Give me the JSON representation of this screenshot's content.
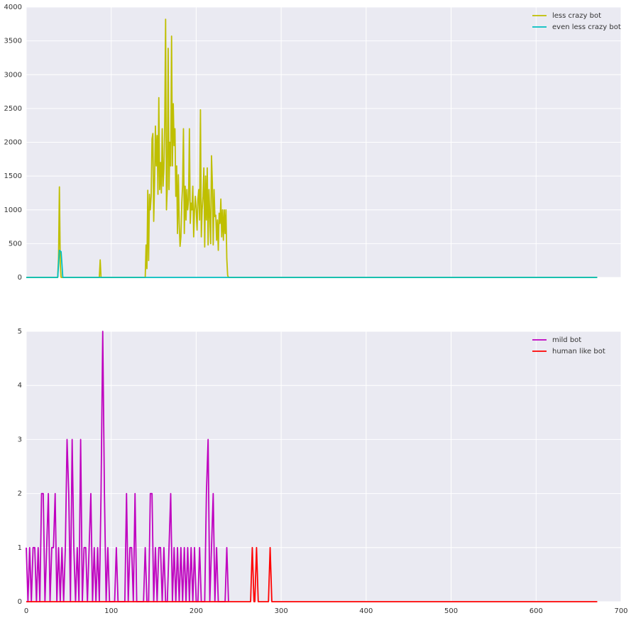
{
  "chart_data": [
    {
      "type": "line",
      "xlim": [
        0,
        700
      ],
      "ylim": [
        0,
        4000
      ],
      "xticks": [
        0,
        100,
        200,
        300,
        400,
        500,
        600,
        700
      ],
      "show_xtick_labels": false,
      "yticks": [
        0,
        500,
        1000,
        1500,
        2000,
        2500,
        3000,
        3500,
        4000
      ],
      "grid": true,
      "legend": "upper right",
      "series": [
        {
          "name": "less crazy bot",
          "color": "#bfbf00",
          "x": [
            0,
            37,
            38,
            39,
            40,
            41,
            86,
            87,
            88,
            140,
            141,
            142,
            143,
            144,
            145,
            146,
            147,
            148,
            149,
            150,
            151,
            152,
            153,
            154,
            155,
            156,
            157,
            158,
            159,
            160,
            161,
            162,
            163,
            164,
            165,
            166,
            167,
            168,
            169,
            170,
            171,
            172,
            173,
            174,
            175,
            176,
            177,
            178,
            179,
            180,
            181,
            182,
            183,
            184,
            185,
            186,
            187,
            188,
            189,
            190,
            191,
            192,
            193,
            194,
            195,
            196,
            197,
            198,
            199,
            200,
            201,
            202,
            203,
            204,
            205,
            206,
            207,
            208,
            209,
            210,
            211,
            212,
            213,
            214,
            215,
            216,
            217,
            218,
            219,
            220,
            221,
            222,
            223,
            224,
            225,
            226,
            227,
            228,
            229,
            230,
            231,
            232,
            233,
            234,
            235,
            236,
            237,
            238,
            672
          ],
          "values": [
            0,
            0,
            300,
            1340,
            200,
            0,
            0,
            260,
            0,
            0,
            480,
            130,
            1290,
            250,
            1230,
            1000,
            1200,
            2050,
            2130,
            830,
            1400,
            2240,
            1650,
            2100,
            1230,
            2660,
            1300,
            1700,
            1250,
            2200,
            1350,
            1600,
            2300,
            3820,
            1000,
            1350,
            3390,
            1300,
            2000,
            1650,
            3570,
            1650,
            2570,
            1950,
            2200,
            1200,
            1650,
            650,
            1520,
            800,
            460,
            600,
            1100,
            1350,
            2200,
            650,
            1350,
            850,
            1300,
            1000,
            1150,
            2200,
            800,
            1100,
            1000,
            1350,
            600,
            1000,
            1200,
            1000,
            700,
            1150,
            1300,
            850,
            2480,
            600,
            1000,
            1200,
            1620,
            450,
            1500,
            850,
            1620,
            480,
            1300,
            900,
            500,
            1800,
            1400,
            480,
            1300,
            900,
            920,
            550,
            850,
            400,
            950,
            800,
            1160,
            600,
            1000,
            550,
            1000,
            650,
            1000,
            280,
            30,
            0,
            0
          ]
        },
        {
          "name": "even less crazy bot",
          "color": "#00bfbf",
          "x": [
            0,
            37,
            39,
            41,
            43,
            672
          ],
          "values": [
            0,
            0,
            400,
            380,
            0,
            0
          ]
        }
      ]
    },
    {
      "type": "line",
      "xlim": [
        0,
        700
      ],
      "ylim": [
        0,
        5
      ],
      "xticks": [
        0,
        100,
        200,
        300,
        400,
        500,
        600,
        700
      ],
      "show_xtick_labels": true,
      "yticks": [
        0,
        1,
        2,
        3,
        4,
        5
      ],
      "grid": true,
      "legend": "upper right",
      "series": [
        {
          "name": "mild bot",
          "color": "#bf00bf",
          "x": [
            0,
            2,
            4,
            6,
            8,
            10,
            12,
            14,
            16,
            18,
            20,
            22,
            24,
            26,
            28,
            30,
            32,
            34,
            36,
            38,
            40,
            42,
            44,
            46,
            48,
            50,
            52,
            54,
            56,
            58,
            60,
            62,
            64,
            66,
            68,
            70,
            72,
            74,
            76,
            78,
            80,
            82,
            84,
            86,
            88,
            90,
            92,
            94,
            96,
            98,
            100,
            102,
            104,
            106,
            108,
            110,
            112,
            114,
            116,
            118,
            120,
            122,
            124,
            126,
            128,
            130,
            132,
            134,
            136,
            138,
            140,
            142,
            144,
            146,
            148,
            150,
            152,
            154,
            156,
            158,
            160,
            162,
            164,
            166,
            168,
            170,
            172,
            174,
            176,
            178,
            180,
            182,
            184,
            186,
            188,
            190,
            192,
            194,
            196,
            198,
            200,
            202,
            204,
            206,
            208,
            210,
            212,
            214,
            216,
            218,
            220,
            222,
            224,
            226,
            228,
            230,
            232,
            234,
            236,
            238
          ],
          "values": [
            1,
            0,
            1,
            0,
            1,
            1,
            0,
            1,
            0,
            2,
            2,
            0,
            1,
            2,
            0,
            1,
            1,
            2,
            0,
            1,
            0,
            1,
            0,
            1,
            3,
            2,
            0,
            3,
            1,
            0,
            1,
            0,
            3,
            0,
            1,
            1,
            0,
            1,
            2,
            0,
            1,
            0,
            1,
            0,
            2,
            5,
            2,
            0,
            1,
            0,
            0,
            0,
            0,
            1,
            0,
            0,
            0,
            0,
            0,
            2,
            0,
            1,
            1,
            0,
            2,
            0,
            0,
            0,
            0,
            0,
            1,
            0,
            0,
            2,
            2,
            0,
            1,
            0,
            1,
            1,
            0,
            1,
            0,
            0,
            1,
            2,
            0,
            1,
            0,
            1,
            0,
            1,
            0,
            1,
            0,
            1,
            0,
            1,
            0,
            1,
            0,
            0,
            1,
            0,
            0,
            0,
            2,
            3,
            0,
            1,
            2,
            0,
            1,
            0,
            0,
            0,
            0,
            0,
            1,
            0
          ]
        },
        {
          "name": "human like bot",
          "color": "#ff0000",
          "x": [
            0,
            264,
            266,
            268,
            269,
            271,
            273,
            285,
            287,
            289,
            672
          ],
          "values": [
            0,
            0,
            1,
            0,
            0,
            1,
            0,
            0,
            1,
            0,
            0
          ]
        }
      ]
    }
  ]
}
